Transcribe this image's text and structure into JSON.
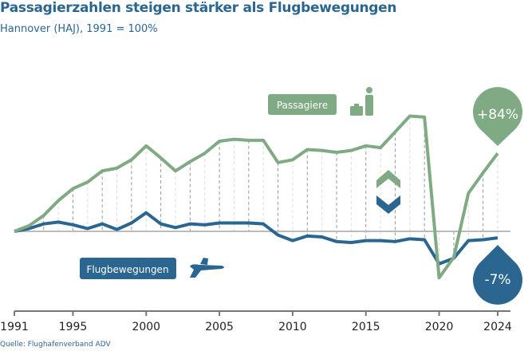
{
  "title": "Passagierzahlen steigen stärker als Flugbewegungen",
  "subtitle": "Hannover (HAJ), 1991 = 100%",
  "source": "Quelle: Flughafenverband ADV",
  "colors": {
    "passagiere": "#7faa84",
    "flugbewegungen": "#2a6690",
    "baseline": "#bbbbbb",
    "axis": "#777777"
  },
  "chart_data": {
    "type": "line",
    "title": "Passagierzahlen steigen stärker als Flugbewegungen",
    "subtitle": "Hannover (HAJ), 1991 = 100%",
    "x": [
      1991,
      1992,
      1993,
      1994,
      1995,
      1996,
      1997,
      1998,
      1999,
      2000,
      2001,
      2002,
      2003,
      2004,
      2005,
      2006,
      2007,
      2008,
      2009,
      2010,
      2011,
      2012,
      2013,
      2014,
      2015,
      2016,
      2017,
      2018,
      2019,
      2020,
      2021,
      2022,
      2023,
      2024
    ],
    "xticks": [
      "1991",
      "1995",
      "2000",
      "2005",
      "2010",
      "2015",
      "2020",
      "2024"
    ],
    "xlim": [
      1991,
      2024
    ],
    "ylim": [
      25,
      265
    ],
    "baseline": 100,
    "grid": false,
    "series": [
      {
        "name": "Passagiere",
        "icon": "traveler-with-suitcase-icon",
        "values": [
          100,
          106,
          117,
          133,
          146,
          153,
          165,
          168,
          177,
          192,
          179,
          165,
          175,
          184,
          197,
          199,
          198,
          198,
          174,
          177,
          188,
          187,
          185,
          187,
          192,
          190,
          207,
          224,
          223,
          50,
          72,
          141,
          163,
          184
        ],
        "end_label": "+84%"
      },
      {
        "name": "Flugbewegungen",
        "icon": "airplane-icon",
        "values": [
          100,
          103,
          108,
          110,
          107,
          103,
          108,
          102,
          109,
          120,
          108,
          104,
          108,
          107,
          109,
          109,
          109,
          108,
          96,
          90,
          95,
          94,
          89,
          88,
          90,
          90,
          89,
          92,
          91,
          65,
          71,
          90,
          91,
          93
        ],
        "end_label": "-7%"
      }
    ]
  }
}
